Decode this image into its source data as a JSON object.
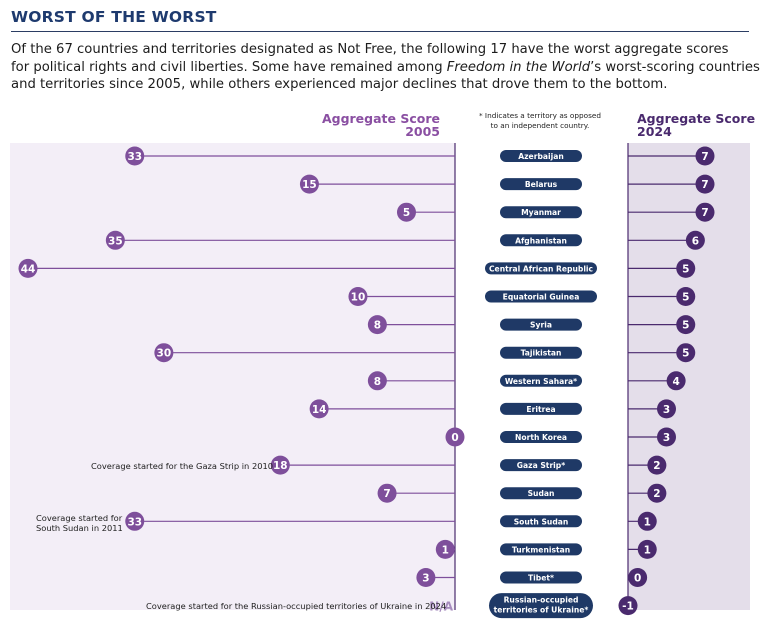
{
  "header": {
    "title": "WORST OF THE WORST",
    "intro": {
      "line1": "Of the 67 countries and territories designated as Not Free, the following 17 have the worst aggregate scores",
      "line2": "for political rights and civil liberties. Some have remained among ",
      "line2_italic": "Freedom in the World",
      "line2_tail": "’s worst-scoring countries",
      "line3": "and territories since 2005, while others experienced major declines that drove them to the bottom."
    }
  },
  "legend": {
    "left_header_line1": "Aggregate Score",
    "left_header_line2": "2005",
    "right_header_line1": "Aggregate Score",
    "right_header_line2": "2024",
    "note_line1": "* Indicates a territory as opposed",
    "note_line2": "to an independent country."
  },
  "annotations": {
    "gaza": "Coverage started for the Gaza Strip in 2010",
    "south_sudan_line1": "Coverage started for",
    "south_sudan_line2": "South Sudan in 2011",
    "ukraine": "Coverage started for the Russian-occupied territories of Ukraine in 2024"
  },
  "colors": {
    "purple_dark": "#4a2a6e",
    "purple_mid": "#7e4f9b",
    "lavender_bg": "#f3eef7",
    "right_bg": "#e4deea",
    "navy": "#1f3966",
    "na_text": "#a68bbd"
  },
  "chart_data": {
    "type": "dumbbell",
    "title": "WORST OF THE WORST",
    "xlabel": "Aggregate Score",
    "left_year": "2005",
    "right_year": "2024",
    "categories": [
      "Azerbaijan",
      "Belarus",
      "Myanmar",
      "Afghanistan",
      "Central African Republic",
      "Equatorial Guinea",
      "Syria",
      "Tajikistan",
      "Western Sahara*",
      "Eritrea",
      "North Korea",
      "Gaza Strip*",
      "Sudan",
      "South Sudan",
      "Turkmenistan",
      "Tibet*",
      "Russian-occupied territories of Ukraine*"
    ],
    "label_lines": [
      [
        "Azerbaijan"
      ],
      [
        "Belarus"
      ],
      [
        "Myanmar"
      ],
      [
        "Afghanistan"
      ],
      [
        "Central African Republic"
      ],
      [
        "Equatorial Guinea"
      ],
      [
        "Syria"
      ],
      [
        "Tajikistan"
      ],
      [
        "Western Sahara*"
      ],
      [
        "Eritrea"
      ],
      [
        "North Korea"
      ],
      [
        "Gaza Strip*"
      ],
      [
        "Sudan"
      ],
      [
        "South Sudan"
      ],
      [
        "Turkmenistan"
      ],
      [
        "Tibet*"
      ],
      [
        "Russian-occupied",
        "territories of Ukraine*"
      ]
    ],
    "series": [
      {
        "name": "Aggregate Score 2005",
        "values": [
          33,
          15,
          5,
          35,
          44,
          10,
          8,
          30,
          8,
          14,
          0,
          18,
          7,
          33,
          1,
          3,
          null
        ],
        "missing_label": "N/A"
      },
      {
        "name": "Aggregate Score 2024",
        "values": [
          7,
          7,
          7,
          6,
          5,
          5,
          5,
          5,
          4,
          3,
          3,
          2,
          2,
          1,
          1,
          0,
          -1
        ]
      }
    ],
    "ylim_left": [
      0,
      44
    ],
    "ylim_right": [
      -1,
      7
    ]
  }
}
